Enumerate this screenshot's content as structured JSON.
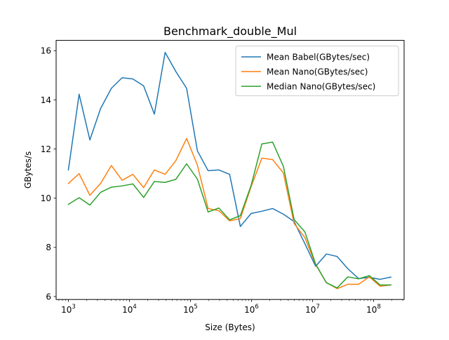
{
  "chart_data": {
    "type": "line",
    "title": "Benchmark_double_Mul",
    "xlabel": "Size (Bytes)",
    "ylabel": "GBytes/s",
    "xscale": "log",
    "xlim": [
      630,
      316000000
    ],
    "ylim": [
      5.88,
      16.42
    ],
    "xticks": [
      {
        "value": 1000,
        "base": "10",
        "exp": "3"
      },
      {
        "value": 10000,
        "base": "10",
        "exp": "4"
      },
      {
        "value": 100000,
        "base": "10",
        "exp": "5"
      },
      {
        "value": 1000000,
        "base": "10",
        "exp": "6"
      },
      {
        "value": 10000000,
        "base": "10",
        "exp": "7"
      },
      {
        "value": 100000000,
        "base": "10",
        "exp": "8"
      }
    ],
    "yticks": [
      {
        "value": 6,
        "label": "6"
      },
      {
        "value": 8,
        "label": "8"
      },
      {
        "value": 10,
        "label": "10"
      },
      {
        "value": 12,
        "label": "12"
      },
      {
        "value": 14,
        "label": "14"
      },
      {
        "value": 16,
        "label": "16"
      }
    ],
    "grid": false,
    "legend_position": "top-right",
    "x": [
      1000,
      1500,
      2250,
      3375,
      5062,
      7593,
      11390,
      17085,
      25628,
      38443,
      57665,
      86498,
      129746,
      194620,
      291929,
      437893,
      656840,
      985260,
      1477890,
      2216835,
      3325253,
      4987879,
      7481819,
      11222729,
      16834094,
      25251141,
      37876711,
      56815066,
      85222600,
      127833900,
      191750850
    ],
    "series": [
      {
        "name": "Mean Babel(GBytes/sec)",
        "color": "#1f77b4",
        "values": [
          11.15,
          14.23,
          12.37,
          13.65,
          14.47,
          14.9,
          14.85,
          14.57,
          13.42,
          15.93,
          15.15,
          14.47,
          11.93,
          11.12,
          11.15,
          10.97,
          8.85,
          9.38,
          9.47,
          9.58,
          9.35,
          9.05,
          8.15,
          7.23,
          7.73,
          7.63,
          7.13,
          6.73,
          6.78,
          6.7,
          6.79
        ]
      },
      {
        "name": "Mean Nano(GBytes/sec)",
        "color": "#ff7f0e",
        "values": [
          10.6,
          11.0,
          10.12,
          10.6,
          11.33,
          10.73,
          10.97,
          10.43,
          11.15,
          10.97,
          11.53,
          12.43,
          11.35,
          9.58,
          9.49,
          9.08,
          9.17,
          10.47,
          11.63,
          11.57,
          11.03,
          8.97,
          8.4,
          7.3,
          6.57,
          6.32,
          6.5,
          6.5,
          6.8,
          6.42,
          6.47
        ]
      },
      {
        "name": "Median Nano(GBytes/sec)",
        "color": "#2ca02c",
        "values": [
          9.75,
          10.02,
          9.72,
          10.24,
          10.45,
          10.5,
          10.58,
          10.03,
          10.68,
          10.64,
          10.77,
          11.4,
          10.78,
          9.44,
          9.6,
          9.12,
          9.29,
          10.52,
          12.21,
          12.28,
          11.3,
          9.13,
          8.63,
          7.32,
          6.56,
          6.35,
          6.8,
          6.72,
          6.85,
          6.47,
          6.47
        ]
      }
    ]
  }
}
